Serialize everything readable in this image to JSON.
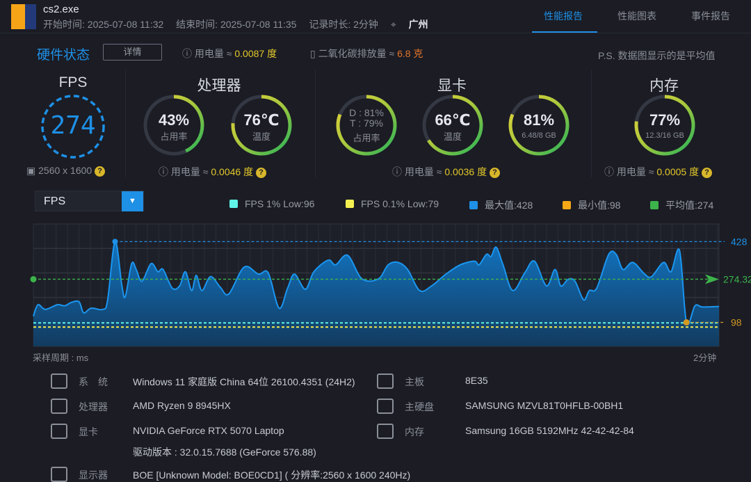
{
  "header": {
    "app_name": "cs2.exe",
    "start": "开始时间: 2025-07-08 11:32",
    "end": "结束时间: 2025-07-08 11:35",
    "duration": "记录时长: 2分钟",
    "location": "广州",
    "tabs": [
      {
        "label": "性能报告",
        "active": true
      },
      {
        "label": "性能图表"
      },
      {
        "label": "事件报告"
      }
    ]
  },
  "status": {
    "title": "硬件状态",
    "detail_button": "详情",
    "power_label": "用电量 ≈",
    "power_value": "0.0087 度",
    "co2_label": "二氧化碳排放量 ≈",
    "co2_value": "6.8 克",
    "note": "P.S. 数据图显示的是平均值"
  },
  "fps": {
    "title": "FPS",
    "value": "274",
    "resolution": "2560 x 1600"
  },
  "cpu": {
    "title": "处理器",
    "usage": "43%",
    "usage_label": "占用率",
    "usage_frac": 0.43,
    "temp": "76℃",
    "temp_label": "温度",
    "temp_frac": 0.76,
    "power_label": "用电量 ≈",
    "power_value": "0.0046 度"
  },
  "gpu": {
    "title": "显卡",
    "d": "D : 81%",
    "t": "T : 79%",
    "usage_label": "占用率",
    "usage_frac": 0.81,
    "temp": "66℃",
    "temp_label": "温度",
    "temp_frac": 0.66,
    "vram": "81%",
    "vram_detail": "6.48/8 GB",
    "vram_frac": 0.81,
    "power_label": "用电量 ≈",
    "power_value": "0.0036 度"
  },
  "mem": {
    "title": "内存",
    "usage": "77%",
    "detail": "12.3/16 GB",
    "usage_frac": 0.77,
    "power_label": "用电量 ≈",
    "power_value": "0.0005 度"
  },
  "colors": {
    "accent": "#1e90e6",
    "yellow": "#e4c92a",
    "orange": "#e4742a",
    "green": "#3cb44b"
  },
  "chart_select": {
    "value": "FPS"
  },
  "chart_data": {
    "type": "area",
    "legend": [
      {
        "label": "FPS 1% Low:96",
        "color": "#5ff5e8"
      },
      {
        "label": "FPS 0.1% Low:79",
        "color": "#f5f050"
      },
      {
        "label": "最大值:428",
        "color": "#1e90e6"
      },
      {
        "label": "最小值:98",
        "color": "#f5a817"
      },
      {
        "label": "平均值:274",
        "color": "#3cb44b"
      }
    ],
    "legend_placement": "top-right",
    "xlabel": "采样周期 : ms",
    "x_end_label": "2分钟",
    "ylim": [
      0,
      500
    ],
    "grid": true,
    "reference_lines": {
      "max": 428,
      "min": 98,
      "avg": 274.32,
      "low1": 96,
      "low01": 79
    },
    "ref_labels": {
      "max": "428",
      "avg": "274.32",
      "min": "98"
    },
    "x": [
      0,
      0.8,
      2.1,
      4.2,
      5.5,
      6.7,
      8.0,
      8.8,
      10.1,
      12.2,
      13.0,
      14.3,
      15.5,
      16.1,
      17.2,
      18.0,
      19.0,
      20.6,
      21.8,
      22.7,
      24.3,
      25.6,
      26.6,
      27.7,
      28.5,
      29.5,
      31.0,
      32.7,
      34.2,
      36.9,
      39.4,
      41.1,
      43.0,
      44.5,
      45.7,
      47.6,
      49.1,
      51.6,
      52.9,
      55.0,
      57.5,
      60.4,
      62.1,
      63.8,
      65.5,
      67.6,
      69.7,
      72.2,
      74.7,
      77.2,
      78.0,
      79.3,
      80.1,
      81.0,
      82.2,
      83.9,
      86.0,
      87.7,
      89.8,
      91.3,
      92.3,
      93.6,
      94.8,
      96.3,
      97.3,
      98.6,
      100.7,
      102.0,
      103.2,
      104.9,
      107.0,
      108.2,
      110.3,
      111.6,
      113.1,
      114.3,
      115.8,
      117.1,
      120
    ],
    "values": [
      123,
      170,
      151,
      170,
      166,
      180,
      182,
      137,
      156,
      151,
      190,
      428,
      247,
      204,
      338,
      314,
      266,
      338,
      305,
      314,
      238,
      247,
      305,
      228,
      290,
      228,
      285,
      242,
      214,
      324,
      295,
      300,
      156,
      238,
      295,
      233,
      305,
      352,
      333,
      372,
      276,
      276,
      333,
      343,
      314,
      228,
      247,
      295,
      333,
      348,
      333,
      376,
      367,
      405,
      333,
      228,
      300,
      348,
      247,
      314,
      247,
      274,
      266,
      190,
      228,
      238,
      376,
      376,
      314,
      343,
      295,
      285,
      343,
      305,
      391,
      98,
      166,
      161,
      163
    ]
  },
  "specs": {
    "left": [
      {
        "icon": "windows-icon",
        "label": "系　统",
        "value": "Windows 11 家庭版 China 64位 26100.4351 (24H2)"
      },
      {
        "icon": "cpu-icon",
        "label": "处理器",
        "value": "AMD Ryzen 9 8945HX"
      },
      {
        "icon": "gpu-icon",
        "label": "显卡",
        "value": "NVIDIA GeForce RTX 5070 Laptop",
        "extra": "驱动版本 : 32.0.15.7688 (GeForce 576.88)"
      },
      {
        "icon": "monitor-icon",
        "label": "显示器",
        "value": "BOE [Unknown Model: BOE0CD1] ( 分辨率:2560 x 1600 240Hz)"
      }
    ],
    "right": [
      {
        "icon": "motherboard-icon",
        "label": "主板",
        "value": "8E35"
      },
      {
        "icon": "disk-icon",
        "label": "主硬盘",
        "value": "SAMSUNG MZVL81T0HFLB-00BH1"
      },
      {
        "icon": "memory-icon",
        "label": "内存",
        "value": "Samsung 16GB 5192MHz 42-42-42-84"
      }
    ]
  }
}
